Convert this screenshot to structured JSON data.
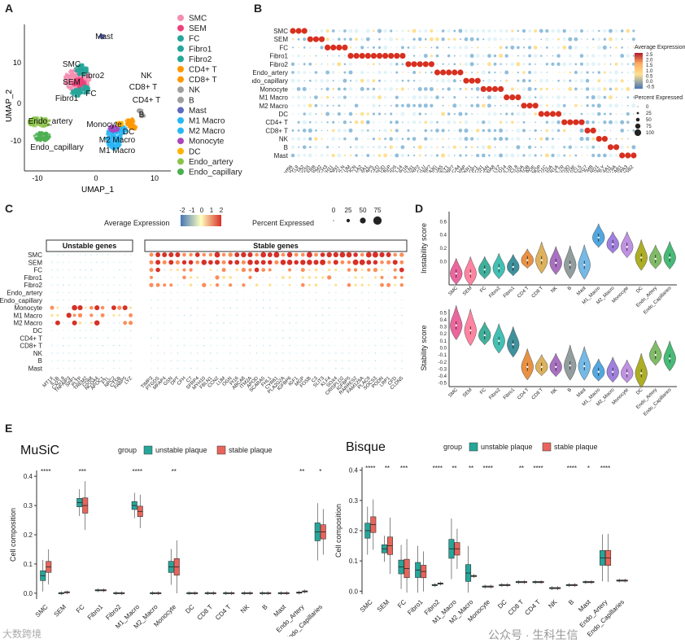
{
  "panels": {
    "A": "A",
    "B": "B",
    "C": "C",
    "D": "D",
    "E": "E"
  },
  "colors": {
    "unstable": "#26a69a",
    "stable": "#e8645a",
    "high": "#d7301f",
    "mid": "#fdae61",
    "low": "#6baed6"
  },
  "panel_a": {
    "xlabel": "UMAP_1",
    "ylabel": "UMAP_2",
    "xticks": [
      "-10",
      "0",
      "10"
    ],
    "yticks": [
      "10",
      "0",
      "-10"
    ],
    "clusters": [
      {
        "name": "SMC",
        "color": "#f48fb1"
      },
      {
        "name": "SEM",
        "color": "#ec407a"
      },
      {
        "name": "FC",
        "color": "#26a69a"
      },
      {
        "name": "Fibro1",
        "color": "#26a69a"
      },
      {
        "name": "Fibro2",
        "color": "#26a69a"
      },
      {
        "name": "CD4+ T",
        "color": "#ff9800"
      },
      {
        "name": "CD8+ T",
        "color": "#ff9800"
      },
      {
        "name": "NK",
        "color": "#9e9e9e"
      },
      {
        "name": "B",
        "color": "#9e9e9e"
      },
      {
        "name": "Mast",
        "color": "#5c6bc0"
      },
      {
        "name": "M1 Macro",
        "color": "#29b6f6"
      },
      {
        "name": "M2 Macro",
        "color": "#29b6f6"
      },
      {
        "name": "Monocyte",
        "color": "#ab47bc"
      },
      {
        "name": "DC",
        "color": "#ffb300"
      },
      {
        "name": "Endo_artery",
        "color": "#8bc34a"
      },
      {
        "name": "Endo_capillary",
        "color": "#4caf50"
      }
    ],
    "map_labels": [
      "SMC",
      "SEM",
      "FC",
      "Fibro1",
      "Fibro2",
      "Mast",
      "NK",
      "CD8+ T",
      "CD4+ T",
      "B",
      "Monocyte",
      "DC",
      "M2 Macro",
      "M1 Macro",
      "Endo_artery",
      "Endo_capillary"
    ]
  },
  "panel_b": {
    "rows": [
      "SMC",
      "SEM",
      "FC",
      "Fibro1",
      "Fibro2",
      "Endo_artery",
      "Endo_capillary",
      "Monocyte",
      "M1 Macro",
      "M2 Macro",
      "DC",
      "CD4+ T",
      "CD8+ T",
      "NK",
      "B",
      "Mast"
    ],
    "genes": [
      "C11orf96",
      "MYL9",
      "ACTA2",
      "RGS5",
      "PDGFRB",
      "TPM2",
      "NOTCH3",
      "MYH11",
      "CNN1",
      "TAGLN",
      "LUM",
      "DCN",
      "COL1A2",
      "COL3A1",
      "MFAP5",
      "CFD",
      "APOD",
      "MGP",
      "PTGDS",
      "CXCL14",
      "PI16",
      "FBLN1",
      "SFRP2",
      "CLU",
      "IGFBP7",
      "SEMA3G",
      "GJA5",
      "HEY1",
      "RBP7",
      "CA4",
      "PLVAP",
      "ACKR1",
      "AQP1",
      "FCN1",
      "VCAN",
      "S100A8",
      "LYZ",
      "CD14",
      "IL1B",
      "CXCL8",
      "C1QA",
      "C1QB",
      "APOE",
      "SELENOP",
      "CD1C",
      "CLEC10A",
      "FCER1A",
      "IL7R",
      "CD3D",
      "CD3E",
      "CCL5",
      "NKG7",
      "GZMB",
      "KLRD1",
      "GNLY",
      "MS4A1",
      "CD79A",
      "TPSAB1",
      "CPA3",
      "TPSB2"
    ],
    "legend_title": "Average Expression",
    "legend_ticks": [
      "2.5",
      "2.0",
      "1.5",
      "1.0",
      "0.5",
      "0.0",
      "-0.5"
    ],
    "size_title": "Percent Expressed",
    "size_ticks": [
      "0",
      "25",
      "50",
      "75",
      "100"
    ]
  },
  "panel_c": {
    "legend_title": "Average Expression",
    "legend_ticks": [
      "-2",
      "-1",
      "0",
      "1",
      "2"
    ],
    "size_title": "Percent Expressed",
    "size_ticks": [
      "0",
      "25",
      "50",
      "75"
    ],
    "group1": "Unstable genes",
    "group2": "Stable genes",
    "rows": [
      "SMC",
      "SEM",
      "FC",
      "Fibro1",
      "Fibro2",
      "Endo_artery",
      "Endo_capillary",
      "Monocyte",
      "M1 Macro",
      "M2 Macro",
      "DC",
      "CD4+ T",
      "CD8+ T",
      "NK",
      "B",
      "Mast"
    ],
    "unstable_genes": [
      "MT1X",
      "IL1B",
      "CXCL8",
      "TNFAIP3",
      "SPP1",
      "PLTP",
      "TREM2",
      "CD68",
      "NCOA4",
      "APOC1",
      "FTL",
      "NPC2",
      "CTSB",
      "FABP5",
      "LYZ"
    ],
    "stable_genes": [
      "TIMP3",
      "PTGDS",
      "MFAP4",
      "GSN",
      "DPT",
      "CFH",
      "C7",
      "SFRP4",
      "MYH10",
      "FBLN1",
      "CCN2",
      "LUM",
      "OGN",
      "PI16",
      "ABCA8",
      "ITM2A",
      "APOD",
      "SCARA5",
      "FHL1",
      "CYR61",
      "PLA2G2A",
      "IGFBP6",
      "IGF1",
      "MGP",
      "FOSB",
      "C3",
      "SLIT3",
      "KLF4",
      "SOX4",
      "CRISPLD2",
      "IGFBP5",
      "RARRES2",
      "FAM129A",
      "PLAC9",
      "SOCS3",
      "PODN",
      "LRP1",
      "CFD",
      "CLDN5"
    ]
  },
  "panel_d": {
    "groups": [
      "SMC",
      "SEM",
      "FC",
      "Fibro2",
      "Fibro1",
      "CD4 T",
      "CD8 T",
      "NK",
      "B",
      "Mast",
      "M1_Macro",
      "M2_Macro",
      "Monocyte",
      "DC",
      "Endo_Artery",
      "Endo_Capillaries"
    ],
    "colors": [
      "#e84c8b",
      "#ff6f91",
      "#1fa38a",
      "#23b6a6",
      "#1d7f8c",
      "#e67e22",
      "#d9a441",
      "#9b59b6",
      "#7f8c8d",
      "#5dade2",
      "#3498db",
      "#8e6bd8",
      "#b57edc",
      "#a0a000",
      "#6ab04c",
      "#27ae60"
    ],
    "instability": {
      "ylabel": "Instability score",
      "yticks": [
        "0.6",
        "0.4",
        "0.2",
        "0.0"
      ],
      "medians": [
        -0.18,
        -0.18,
        -0.12,
        -0.1,
        -0.08,
        0.02,
        0.02,
        -0.02,
        -0.05,
        -0.05,
        0.36,
        0.26,
        0.22,
        0.06,
        0.04,
        0.06
      ],
      "ylim": [
        -0.35,
        0.75
      ]
    },
    "stability": {
      "ylabel": "Stability score",
      "yticks": [
        "0.5",
        "0.4",
        "0.3",
        "0.2",
        "0.1",
        "0.0",
        "-0.1",
        "-0.2",
        "-0.3",
        "-0.4",
        "-0.5"
      ],
      "medians": [
        0.32,
        0.25,
        0.18,
        0.1,
        0.05,
        -0.27,
        -0.27,
        -0.27,
        -0.25,
        -0.26,
        -0.34,
        -0.34,
        -0.36,
        -0.36,
        -0.1,
        -0.15
      ],
      "ylim": [
        -0.55,
        0.55
      ]
    }
  },
  "panel_e": {
    "music": {
      "title": "MuSiC",
      "legend_label": "group",
      "legend_unstable": "unstable plaque",
      "legend_stable": "stable plaque",
      "ylabel": "Cell composition",
      "yticks": [
        "0.4",
        "0.3",
        "0.2",
        "0.1",
        "0.0"
      ],
      "ylim": [
        -0.02,
        0.42
      ],
      "categories": [
        "SMC",
        "SEM",
        "FC",
        "Fibro1",
        "Fibro2",
        "M1_Macro",
        "M2_Macro",
        "Monocyte",
        "DC",
        "CD8 T",
        "CD4 T",
        "NK",
        "B",
        "Mast",
        "Endo_Artery",
        "Endo_Capillaries"
      ],
      "unstable_median": [
        0.06,
        0.0,
        0.31,
        0.01,
        0.0,
        0.3,
        0.0,
        0.09,
        0.0,
        0.0,
        0.0,
        0.0,
        0.0,
        0.0,
        0.002,
        0.21
      ],
      "stable_median": [
        0.09,
        0.003,
        0.3,
        0.01,
        0.0,
        0.28,
        0.0,
        0.09,
        0.0,
        0.0,
        0.0,
        0.0,
        0.0,
        0.0,
        0.006,
        0.21
      ],
      "sig": [
        "****",
        "",
        "***",
        "",
        "",
        "****",
        "",
        "**",
        "",
        "",
        "",
        "",
        "",
        "",
        "**",
        "*"
      ]
    },
    "bisque": {
      "title": "Bisque",
      "legend_label": "group",
      "legend_unstable": "unstable plaque",
      "legend_stable": "stable plaque",
      "ylabel": "Cell composition",
      "yticks": [
        "0.4",
        "0.3",
        "0.2",
        "0.1",
        "0.0"
      ],
      "ylim": [
        -0.01,
        0.41
      ],
      "categories": [
        "SMC",
        "SEM",
        "FC",
        "Fibro1",
        "Fibro2",
        "M1_Macro",
        "M2_Macro",
        "Monocyte",
        "DC",
        "CD8 T",
        "CD4 T",
        "NK",
        "B",
        "Mast",
        "Endo_Artery",
        "Endo_Capillaries"
      ],
      "unstable_median": [
        0.2,
        0.14,
        0.08,
        0.07,
        0.02,
        0.14,
        0.06,
        0.015,
        0.02,
        0.03,
        0.03,
        0.01,
        0.02,
        0.03,
        0.11,
        0.035
      ],
      "stable_median": [
        0.22,
        0.15,
        0.075,
        0.065,
        0.025,
        0.14,
        0.05,
        0.015,
        0.02,
        0.03,
        0.03,
        0.01,
        0.02,
        0.03,
        0.11,
        0.035
      ],
      "sig": [
        "****",
        "**",
        "***",
        "",
        "****",
        "**",
        "**",
        "****",
        "",
        "**",
        "****",
        "",
        "****",
        "*",
        "****",
        ""
      ]
    },
    "watermark_left": "大数跨境",
    "watermark_right": "公众号 · 生科生信"
  }
}
